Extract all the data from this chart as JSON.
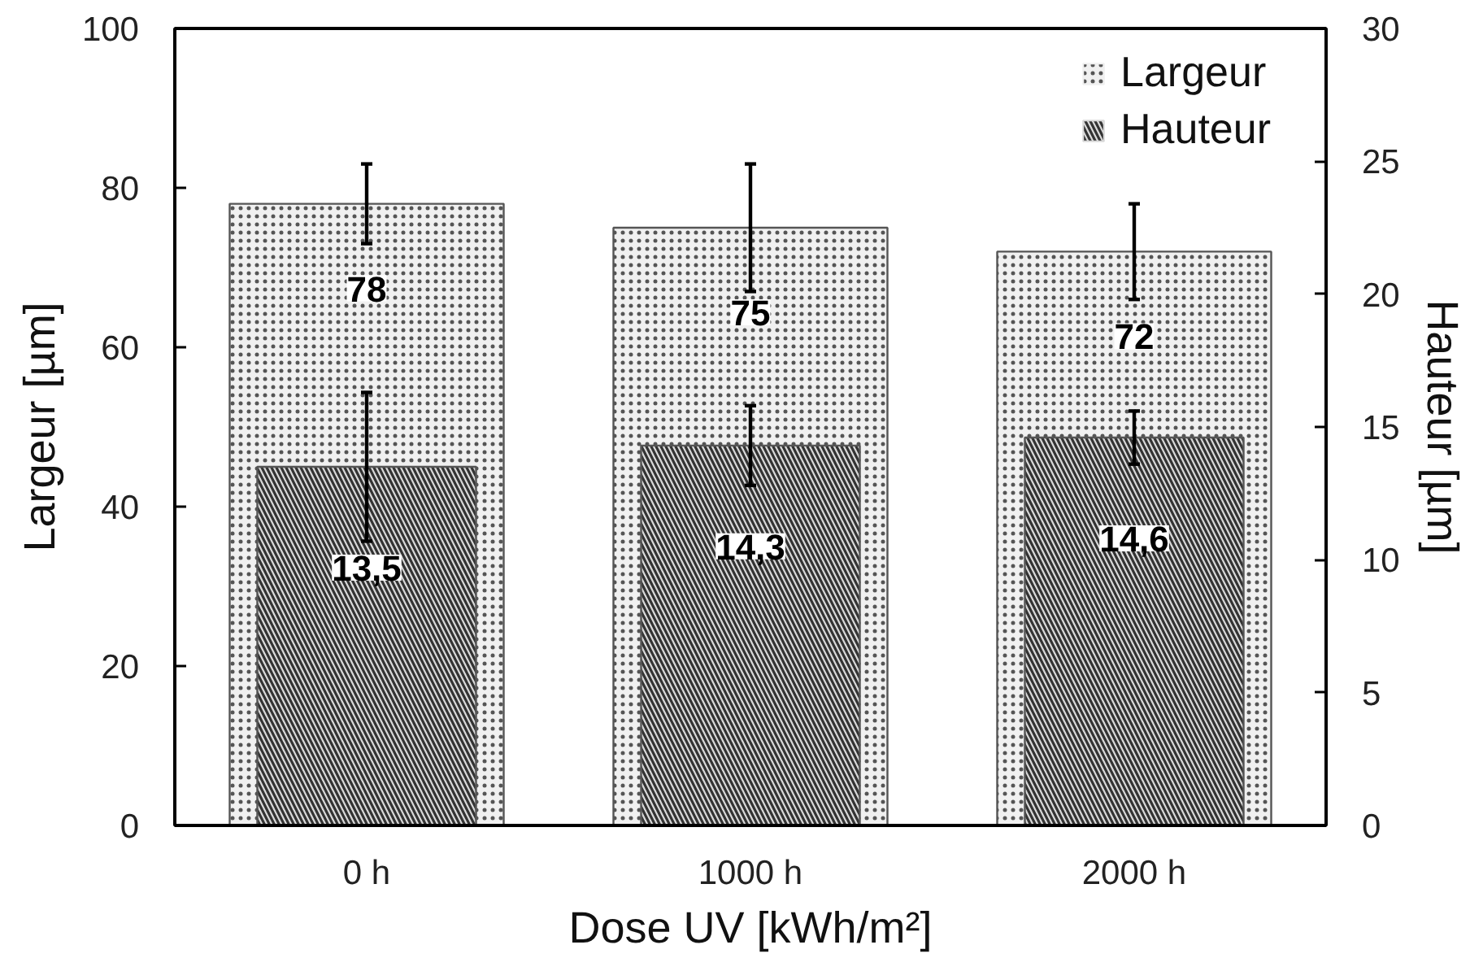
{
  "chart_data": {
    "type": "bar",
    "categories": [
      "0 h",
      "1000 h",
      "2000 h"
    ],
    "series": [
      {
        "name": "Largeur",
        "color": "#f0f0f0",
        "values": [
          78,
          75,
          72
        ],
        "errors": [
          5,
          8,
          6
        ],
        "value_labels": [
          "78",
          "75",
          "72"
        ]
      },
      {
        "name": "Hauteur",
        "color": "#d9d9d9",
        "values": [
          13.5,
          14.3,
          14.6
        ],
        "errors": [
          2.8,
          1.5,
          1.0
        ],
        "value_labels": [
          "13,5",
          "14,3",
          "14,6"
        ],
        "axis": "y2"
      }
    ],
    "xlabel": "Dose UV [kWh/m²]",
    "ylabel": "Largeur [µm]",
    "y2label": "Hauteur [µm]",
    "ylim": [
      0,
      100
    ],
    "yticks": [
      0,
      20,
      40,
      60,
      80,
      100
    ],
    "y2lim": [
      0,
      30
    ],
    "y2ticks": [
      0,
      5,
      10,
      15,
      20,
      25,
      30
    ],
    "grid": false,
    "legend": "top right"
  }
}
